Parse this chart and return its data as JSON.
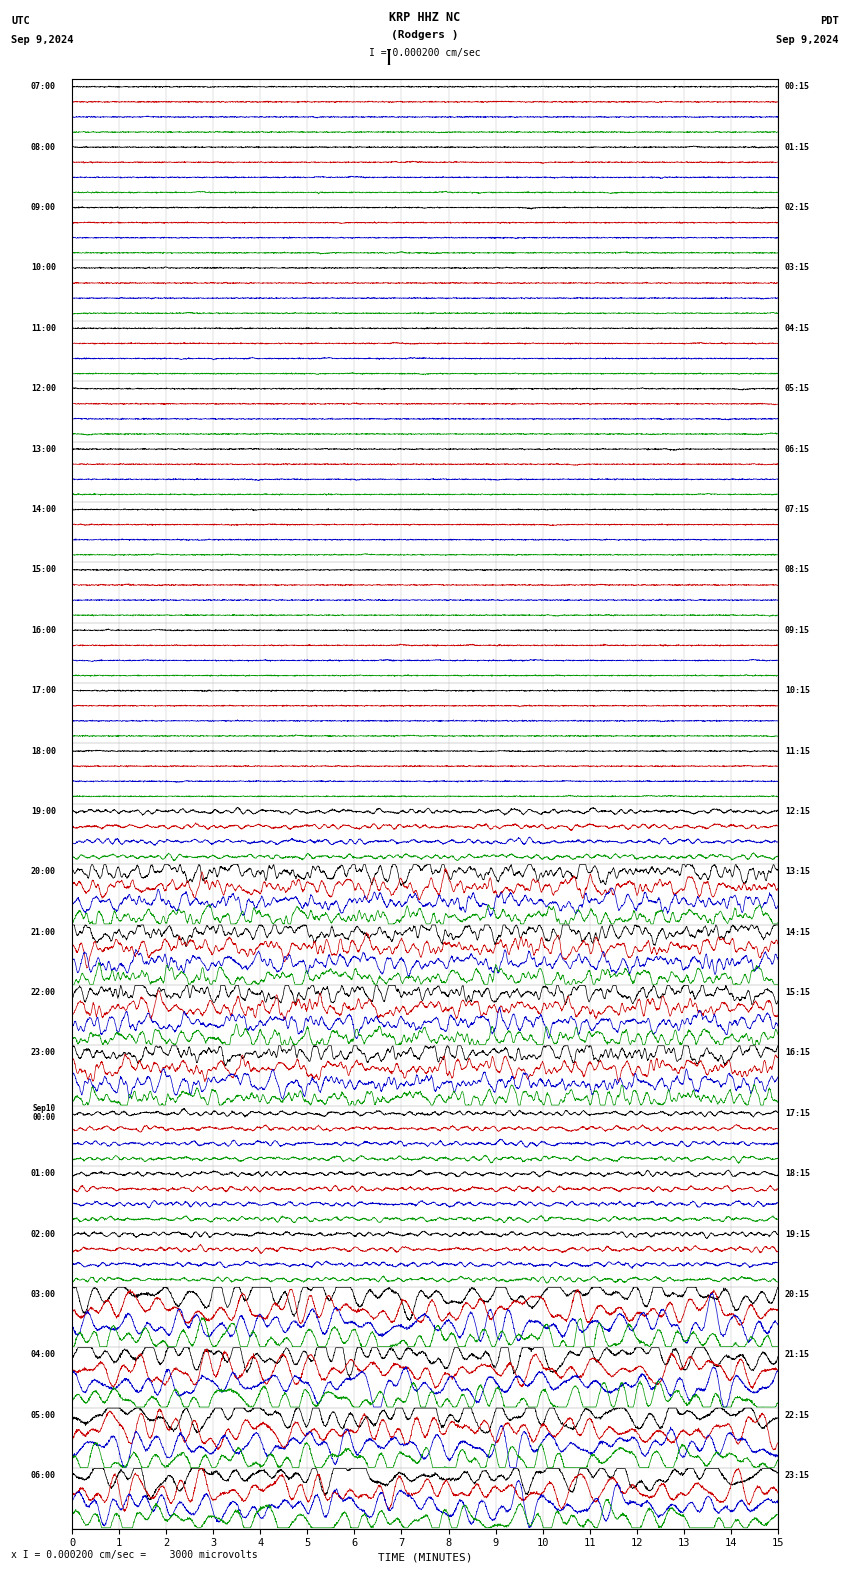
{
  "title_center": "KRP HHZ NC\n(Rodgers )",
  "title_left": "UTC\nSep 9,2024",
  "title_right": "PDT\nSep 9,2024",
  "scale_text": "I = 0.000200 cm/sec",
  "bottom_text": "x I = 0.000200 cm/sec =    3000 microvolts",
  "xlabel": "TIME (MINUTES)",
  "bg_color": "#ffffff",
  "trace_colors": [
    "#000000",
    "#cc0000",
    "#0000cc",
    "#009900"
  ],
  "left_times": [
    "07:00",
    "08:00",
    "09:00",
    "10:00",
    "11:00",
    "12:00",
    "13:00",
    "14:00",
    "15:00",
    "16:00",
    "17:00",
    "18:00",
    "19:00",
    "20:00",
    "21:00",
    "22:00",
    "23:00",
    "Sep10\n00:00",
    "01:00",
    "02:00",
    "03:00",
    "04:00",
    "05:00",
    "06:00"
  ],
  "right_times": [
    "00:15",
    "01:15",
    "02:15",
    "03:15",
    "04:15",
    "05:15",
    "06:15",
    "07:15",
    "08:15",
    "09:15",
    "10:15",
    "11:15",
    "12:15",
    "13:15",
    "14:15",
    "15:15",
    "16:15",
    "17:15",
    "18:15",
    "19:15",
    "20:15",
    "21:15",
    "22:15",
    "23:15"
  ],
  "n_rows": 24,
  "n_traces": 4,
  "minutes_per_row": 15,
  "figsize": [
    8.5,
    15.84
  ],
  "dpi": 100,
  "large_event_rows": [
    13,
    14,
    15,
    16
  ],
  "medium_event_rows": [
    12,
    17,
    18,
    19
  ],
  "quake_rows": [
    20,
    21,
    22,
    23
  ]
}
